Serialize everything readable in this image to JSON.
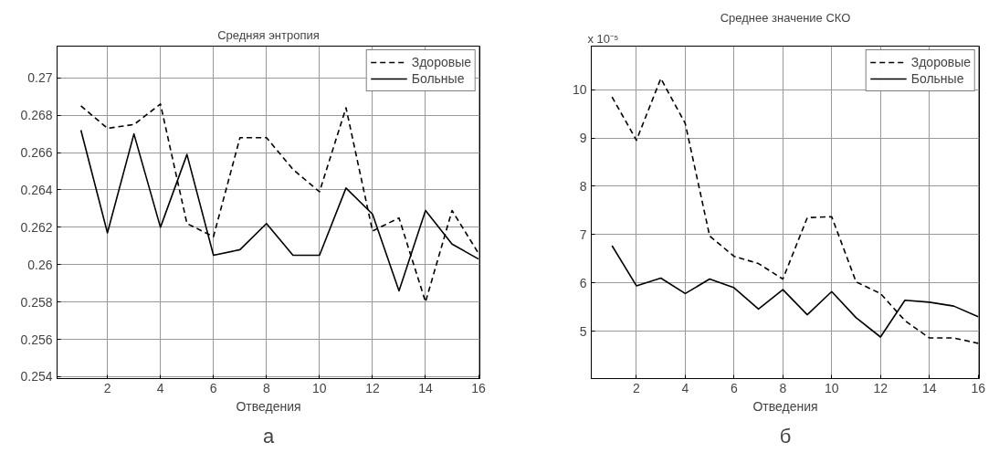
{
  "chart_data": [
    {
      "type": "line",
      "title": "Средняя энтропия",
      "xlabel": "Отведения",
      "annotations": [
        "а"
      ],
      "x": [
        1,
        2,
        3,
        4,
        5,
        6,
        7,
        8,
        9,
        10,
        11,
        12,
        13,
        14,
        15,
        16
      ],
      "xlim": [
        0.1,
        16.05
      ],
      "xticks": [
        2,
        4,
        6,
        8,
        10,
        12,
        14,
        16
      ],
      "ylim": [
        0.2539,
        0.2717
      ],
      "yticks": [
        0.254,
        0.256,
        0.258,
        0.26,
        0.262,
        0.264,
        0.266,
        0.268,
        0.27
      ],
      "grid": true,
      "legend": "top right",
      "series": [
        {
          "name": "Здоровые",
          "color": "#000000",
          "line_style": "dashed",
          "values": [
            0.2685,
            0.2673,
            0.2675,
            0.2686,
            0.2622,
            0.2615,
            0.2668,
            0.2668,
            0.2651,
            0.2639,
            0.2684,
            0.2618,
            0.2625,
            0.258,
            0.2629,
            0.2606
          ]
        },
        {
          "name": "Больные",
          "color": "#000000",
          "line_style": "solid",
          "values": [
            0.2672,
            0.2617,
            0.267,
            0.262,
            0.2659,
            0.2605,
            0.2608,
            0.2622,
            0.2605,
            0.2605,
            0.2641,
            0.2627,
            0.2586,
            0.2629,
            0.2611,
            0.2603
          ]
        }
      ]
    },
    {
      "type": "line",
      "title": "Среднее значение СКО",
      "xlabel": "Отведения",
      "ylabel": "x 10⁻⁵",
      "annotations": [
        "б"
      ],
      "x": [
        1,
        2,
        3,
        4,
        5,
        6,
        7,
        8,
        9,
        10,
        11,
        12,
        13,
        14,
        15,
        16
      ],
      "xlim": [
        0.15,
        16.05
      ],
      "xticks": [
        2,
        4,
        6,
        8,
        10,
        12,
        14,
        16
      ],
      "ylim": [
        4.02,
        10.9
      ],
      "yticks": [
        5,
        6,
        7,
        8,
        9,
        10
      ],
      "grid": true,
      "legend": "top right",
      "series": [
        {
          "name": "Здоровые",
          "color": "#000000",
          "line_style": "dashed",
          "values": [
            9.85,
            8.95,
            10.23,
            9.3,
            6.97,
            6.55,
            6.4,
            6.08,
            7.35,
            7.37,
            6.02,
            5.78,
            5.22,
            4.86,
            4.86,
            4.75
          ]
        },
        {
          "name": "Больные",
          "color": "#000000",
          "line_style": "solid",
          "values": [
            6.77,
            5.94,
            6.1,
            5.78,
            6.08,
            5.9,
            5.46,
            5.86,
            5.34,
            5.82,
            5.28,
            4.88,
            5.64,
            5.6,
            5.52,
            5.3
          ]
        }
      ]
    }
  ]
}
